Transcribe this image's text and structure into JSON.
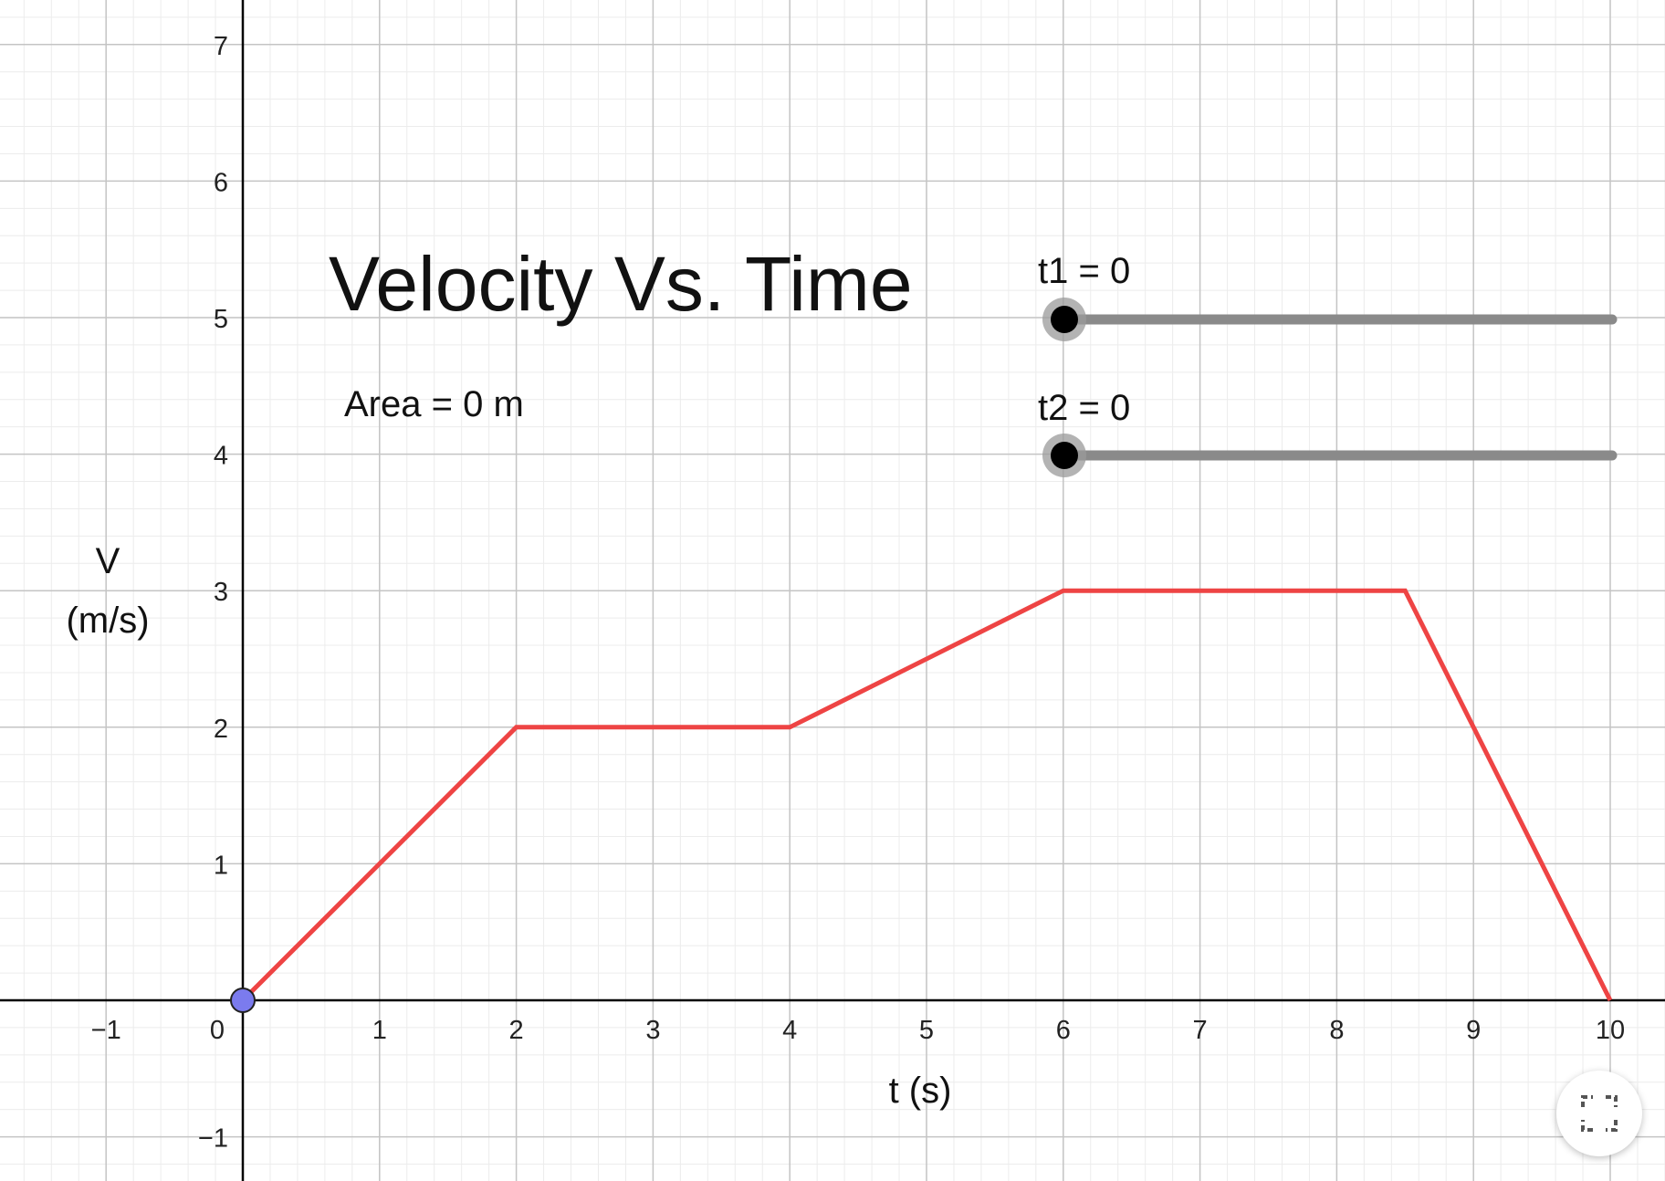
{
  "graph": {
    "title": "Velocity Vs. Time",
    "area_label": "Area = 0 m",
    "x_axis_label": "t (s)",
    "y_axis_label_line1": "V",
    "y_axis_label_line2": "(m/s)",
    "x_ticks": [
      "−1",
      "0",
      "1",
      "2",
      "3",
      "4",
      "5",
      "6",
      "7",
      "8",
      "9",
      "10"
    ],
    "y_ticks": [
      "−1",
      "1",
      "2",
      "3",
      "4",
      "5",
      "6",
      "7"
    ],
    "colors": {
      "line": "#ee4444",
      "origin_point": "#7b7bee",
      "slider_track": "#8a8a8a",
      "slider_knob": "#000000"
    }
  },
  "sliders": [
    {
      "label": "t1 = 0",
      "value": 0
    },
    {
      "label": "t2 = 0",
      "value": 0
    }
  ],
  "fullscreen_icon": "expand-icon",
  "chart_data": {
    "type": "line",
    "title": "Velocity Vs. Time",
    "xlabel": "t (s)",
    "ylabel": "V (m/s)",
    "xlim": [
      -1.77,
      10.4
    ],
    "ylim": [
      -1.3,
      7.3
    ],
    "grid": true,
    "series": [
      {
        "x": [
          0,
          2,
          4,
          6,
          8.5,
          10
        ],
        "y": [
          0,
          2,
          2,
          3,
          3,
          0
        ]
      }
    ]
  }
}
